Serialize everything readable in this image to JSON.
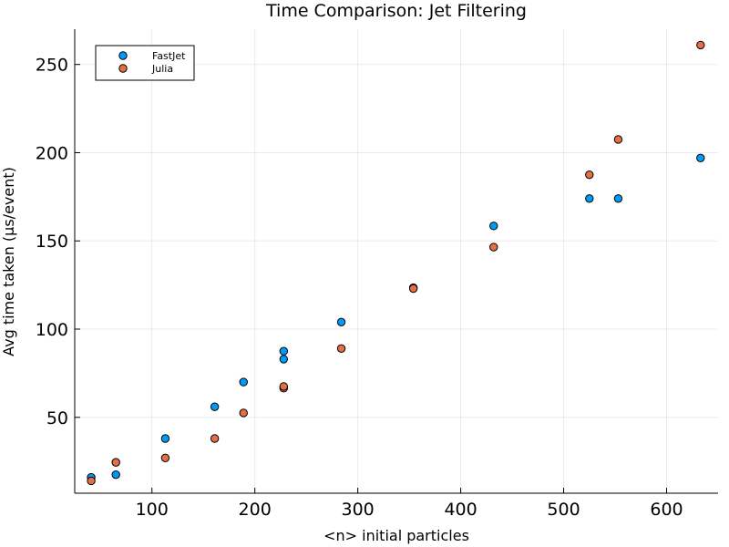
{
  "chart_data": {
    "type": "scatter",
    "title": "Time Comparison: Jet Filtering",
    "xlabel": "<n> initial particles",
    "ylabel": "Avg time taken (μs/event)",
    "xlim": [
      25,
      650
    ],
    "ylim": [
      7,
      270
    ],
    "xticks": [
      100,
      200,
      300,
      400,
      500,
      600
    ],
    "yticks": [
      50,
      100,
      150,
      200,
      250
    ],
    "grid": true,
    "legend_position": "top-left",
    "series": [
      {
        "name": "FastJet",
        "color": "#009af9",
        "points": [
          {
            "x": 41,
            "y": 16
          },
          {
            "x": 65,
            "y": 17.5
          },
          {
            "x": 113,
            "y": 38
          },
          {
            "x": 161,
            "y": 56
          },
          {
            "x": 189,
            "y": 70
          },
          {
            "x": 228,
            "y": 83
          },
          {
            "x": 228,
            "y": 87.5
          },
          {
            "x": 284,
            "y": 104
          },
          {
            "x": 354,
            "y": 123.5
          },
          {
            "x": 432,
            "y": 158.5
          },
          {
            "x": 525,
            "y": 174
          },
          {
            "x": 553,
            "y": 174
          },
          {
            "x": 633,
            "y": 197
          }
        ]
      },
      {
        "name": "Julia",
        "color": "#e26f46",
        "points": [
          {
            "x": 41,
            "y": 14
          },
          {
            "x": 65,
            "y": 24.5
          },
          {
            "x": 113,
            "y": 27
          },
          {
            "x": 161,
            "y": 38
          },
          {
            "x": 189,
            "y": 52.5
          },
          {
            "x": 228,
            "y": 66.5
          },
          {
            "x": 228,
            "y": 67.5
          },
          {
            "x": 284,
            "y": 89
          },
          {
            "x": 354,
            "y": 123
          },
          {
            "x": 432,
            "y": 146.5
          },
          {
            "x": 525,
            "y": 187.5
          },
          {
            "x": 553,
            "y": 207.5
          },
          {
            "x": 633,
            "y": 261
          }
        ]
      }
    ]
  }
}
